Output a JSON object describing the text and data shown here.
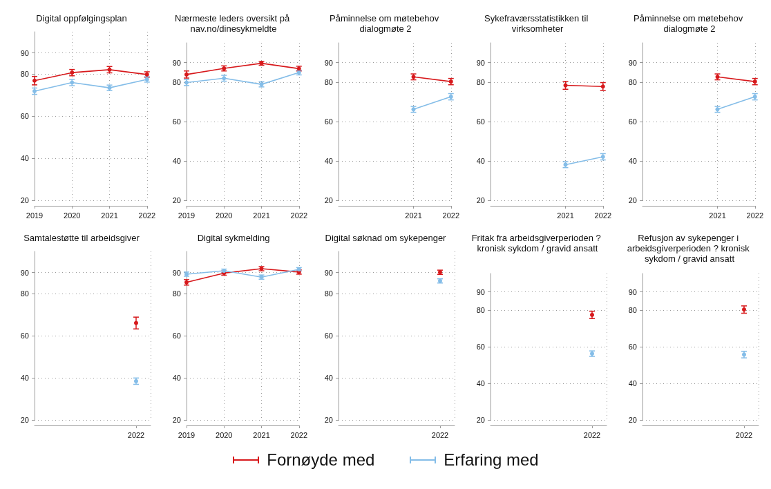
{
  "chart_data": [
    {
      "type": "line",
      "title": "Digital oppfølgingsplan",
      "x": [
        2019,
        2020,
        2021,
        2022
      ],
      "xlim": [
        2019,
        2022
      ],
      "xticks": [
        2019,
        2020,
        2021,
        2022
      ],
      "ylim": [
        20,
        100
      ],
      "yticks": [
        20,
        40,
        60,
        80,
        90
      ],
      "grid": true,
      "marker": "circle",
      "legend": "bottom",
      "series": [
        {
          "name": "Fornøyde med",
          "color": "#d7191c",
          "values": [
            76.8,
            80.6,
            82,
            79.7
          ],
          "errors": [
            2,
            1.5,
            1.5,
            1.3
          ]
        },
        {
          "name": "Erfaring med",
          "color": "#84bde8",
          "values": [
            71.8,
            75.9,
            73.4,
            77.4
          ],
          "errors": [
            1.5,
            1.5,
            1.3,
            1.3
          ]
        }
      ]
    },
    {
      "type": "line",
      "title": "Nærmeste leders oversikt på nav.no/dinesykmeldte",
      "x": [
        2019,
        2020,
        2021,
        2022
      ],
      "xlim": [
        2019,
        2022
      ],
      "xticks": [
        2019,
        2020,
        2021,
        2022
      ],
      "ylim": [
        20,
        100
      ],
      "yticks": [
        20,
        40,
        60,
        80,
        90
      ],
      "grid": true,
      "marker": "circle",
      "series": [
        {
          "color": "#d7191c",
          "values": [
            83.9,
            87,
            89.6,
            86.9
          ],
          "errors": [
            1.8,
            1.3,
            1,
            1.2
          ]
        },
        {
          "color": "#84bde8",
          "values": [
            79.8,
            82,
            78.9,
            84.9
          ],
          "errors": [
            1.5,
            1.5,
            1.3,
            1.2
          ]
        }
      ]
    },
    {
      "type": "line",
      "title": "Påminnelse om møtebehov dialogmøte 2",
      "x": [
        2021,
        2022
      ],
      "xlim": [
        2019,
        2022
      ],
      "xticks": [
        2021,
        2022
      ],
      "ylim": [
        20,
        100
      ],
      "yticks": [
        20,
        40,
        60,
        80,
        90
      ],
      "grid": true,
      "marker": "circle",
      "series": [
        {
          "color": "#d7191c",
          "values": [
            82.7,
            80.3
          ],
          "errors": [
            1.5,
            1.6
          ]
        },
        {
          "color": "#84bde8",
          "values": [
            66.2,
            72.6
          ],
          "errors": [
            1.5,
            1.6
          ]
        }
      ]
    },
    {
      "type": "line",
      "title": "Sykefraværsstatistikken til virksomheter",
      "x": [
        2021,
        2022
      ],
      "xlim": [
        2019,
        2022
      ],
      "xticks": [
        2021,
        2022
      ],
      "ylim": [
        20,
        100
      ],
      "yticks": [
        20,
        40,
        60,
        80,
        90
      ],
      "grid": true,
      "marker": "circle",
      "series": [
        {
          "color": "#d7191c",
          "values": [
            78.4,
            77.8
          ],
          "errors": [
            2,
            2
          ]
        },
        {
          "color": "#84bde8",
          "values": [
            38.1,
            42.1
          ],
          "errors": [
            1.5,
            1.6
          ]
        }
      ]
    },
    {
      "type": "line",
      "title": "Påminnelse om møtebehov dialogmøte 2",
      "x": [
        2021,
        2022
      ],
      "xlim": [
        2019,
        2022
      ],
      "xticks": [
        2021,
        2022
      ],
      "ylim": [
        20,
        100
      ],
      "yticks": [
        20,
        40,
        60,
        80,
        90
      ],
      "grid": true,
      "marker": "circle",
      "series": [
        {
          "color": "#d7191c",
          "values": [
            82.7,
            80.3
          ],
          "errors": [
            1.5,
            1.6
          ]
        },
        {
          "color": "#84bde8",
          "values": [
            66.2,
            72.6
          ],
          "errors": [
            1.5,
            1.6
          ]
        }
      ]
    },
    {
      "type": "line",
      "title": "Samtalestøtte til arbeidsgiver",
      "categories": [
        null,
        null,
        null,
        "2022"
      ],
      "ylim": [
        20,
        100
      ],
      "yticks": [
        20,
        40,
        60,
        80,
        90
      ],
      "grid": true,
      "marker": "circle",
      "series": [
        {
          "color": "#d7191c",
          "values": [
            null,
            null,
            null,
            66
          ],
          "errors": [
            null,
            null,
            null,
            2.8
          ]
        },
        {
          "color": "#84bde8",
          "values": [
            null,
            null,
            null,
            38.4
          ],
          "errors": [
            null,
            null,
            null,
            1.5
          ]
        }
      ]
    },
    {
      "type": "line",
      "title": "Digital sykmelding",
      "x": [
        2019,
        2020,
        2021,
        2022
      ],
      "xlim": [
        2019,
        2022
      ],
      "xticks": [
        2019,
        2020,
        2021,
        2022
      ],
      "ylim": [
        20,
        100
      ],
      "yticks": [
        20,
        40,
        60,
        80,
        90
      ],
      "grid": true,
      "marker": "circle",
      "series": [
        {
          "color": "#d7191c",
          "values": [
            85.3,
            89.7,
            91.8,
            90.2
          ],
          "errors": [
            1.3,
            1,
            1,
            1
          ]
        },
        {
          "color": "#84bde8",
          "values": [
            89.2,
            90.8,
            87.8,
            91.5
          ],
          "errors": [
            1,
            0.8,
            1,
            0.8
          ]
        }
      ]
    },
    {
      "type": "line",
      "title": "Digital søknad om sykepenger",
      "categories": [
        null,
        null,
        null,
        "2022"
      ],
      "ylim": [
        20,
        100
      ],
      "yticks": [
        20,
        40,
        60,
        80,
        90
      ],
      "grid": true,
      "marker": "circle",
      "series": [
        {
          "color": "#d7191c",
          "values": [
            null,
            null,
            null,
            90.1
          ],
          "errors": [
            null,
            null,
            null,
            1
          ]
        },
        {
          "color": "#84bde8",
          "values": [
            null,
            null,
            null,
            86
          ],
          "errors": [
            null,
            null,
            null,
            1
          ]
        }
      ]
    },
    {
      "type": "line",
      "title": "Fritak fra arbeidsgiverperioden ? kronisk sykdom / gravid ansatt",
      "categories": [
        null,
        null,
        null,
        "2022"
      ],
      "ylim": [
        20,
        100
      ],
      "yticks": [
        20,
        40,
        60,
        80,
        90
      ],
      "grid": true,
      "marker": "circle",
      "series": [
        {
          "color": "#d7191c",
          "values": [
            null,
            null,
            null,
            77.4
          ],
          "errors": [
            null,
            null,
            null,
            2
          ]
        },
        {
          "color": "#84bde8",
          "values": [
            null,
            null,
            null,
            56.2
          ],
          "errors": [
            null,
            null,
            null,
            1.5
          ]
        }
      ]
    },
    {
      "type": "line",
      "title": "Refusjon av sykepenger i arbeidsgiverperioden ? kronisk sykdom / gravid ansatt",
      "categories": [
        null,
        null,
        null,
        "2022"
      ],
      "ylim": [
        20,
        100
      ],
      "yticks": [
        20,
        40,
        60,
        80,
        90
      ],
      "grid": true,
      "marker": "circle",
      "series": [
        {
          "color": "#d7191c",
          "values": [
            null,
            null,
            null,
            80.3
          ],
          "errors": [
            null,
            null,
            null,
            2
          ]
        },
        {
          "color": "#84bde8",
          "values": [
            null,
            null,
            null,
            55.7
          ],
          "errors": [
            null,
            null,
            null,
            1.8
          ]
        }
      ]
    }
  ]
}
